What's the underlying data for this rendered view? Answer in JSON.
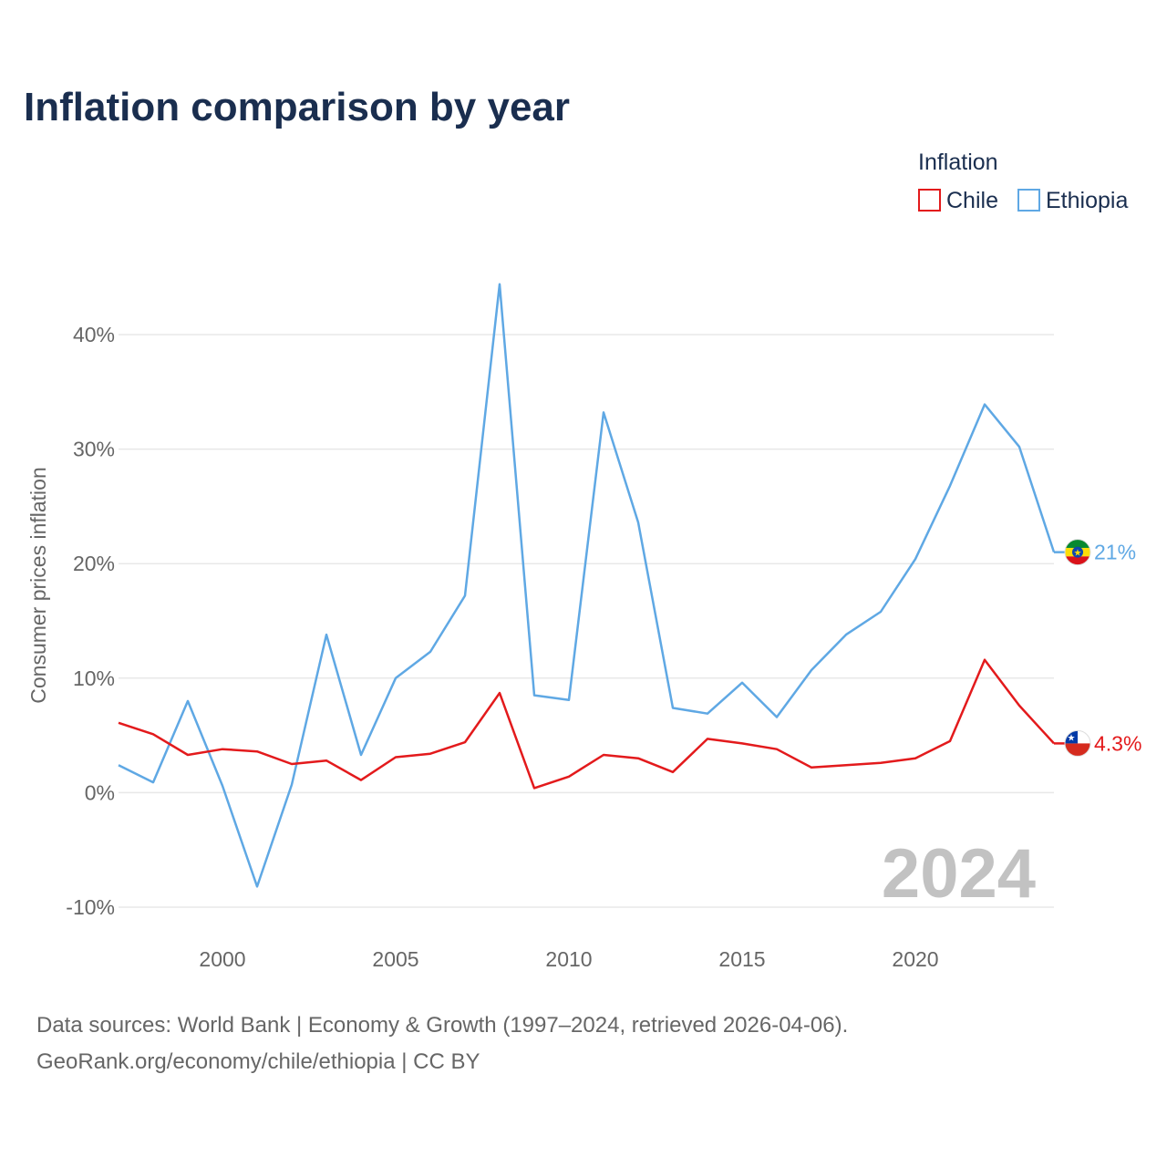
{
  "chart_data": {
    "type": "line",
    "title": "Inflation comparison by year",
    "ylabel": "Consumer prices inflation",
    "xlabel": "",
    "legend_title": "Inflation",
    "legend_position": "top-right",
    "watermark_year": "2024",
    "xlim": [
      1997,
      2024
    ],
    "ylim": [
      -10,
      45
    ],
    "x_ticks": [
      2000,
      2005,
      2010,
      2015,
      2020
    ],
    "x_tick_labels": [
      "2000",
      "2005",
      "2010",
      "2015",
      "2020"
    ],
    "y_ticks": [
      -10,
      0,
      10,
      20,
      30,
      40
    ],
    "y_tick_labels": [
      "-10%",
      "0%",
      "10%",
      "20%",
      "30%",
      "40%"
    ],
    "x": [
      1997,
      1998,
      1999,
      2000,
      2001,
      2002,
      2003,
      2004,
      2005,
      2006,
      2007,
      2008,
      2009,
      2010,
      2011,
      2012,
      2013,
      2014,
      2015,
      2016,
      2017,
      2018,
      2019,
      2020,
      2021,
      2022,
      2023,
      2024
    ],
    "series": [
      {
        "name": "Chile",
        "color": "#e31a1c",
        "end_label": "4.3%",
        "flag": "chile-flag-icon",
        "values": [
          6.1,
          5.1,
          3.3,
          3.8,
          3.6,
          2.5,
          2.8,
          1.1,
          3.1,
          3.4,
          4.4,
          8.7,
          0.4,
          1.4,
          3.3,
          3.0,
          1.8,
          4.7,
          4.3,
          3.8,
          2.2,
          2.4,
          2.6,
          3.0,
          4.5,
          11.6,
          7.6,
          4.3
        ]
      },
      {
        "name": "Ethiopia",
        "color": "#5fa8e4",
        "end_label": "21%",
        "flag": "ethiopia-flag-icon",
        "values": [
          2.4,
          0.9,
          8.0,
          0.6,
          -8.2,
          0.7,
          13.8,
          3.3,
          10.0,
          12.3,
          17.2,
          44.4,
          8.5,
          8.1,
          33.2,
          23.6,
          7.4,
          6.9,
          9.6,
          6.6,
          10.7,
          13.8,
          15.8,
          20.4,
          26.8,
          33.9,
          30.2,
          21.0
        ]
      }
    ]
  },
  "footer": {
    "source_line": "Data sources: World Bank | Economy & Growth (1997–2024, retrieved 2026-04-06).",
    "credit_line": "GeoRank.org/economy/chile/ethiopia | CC BY"
  }
}
